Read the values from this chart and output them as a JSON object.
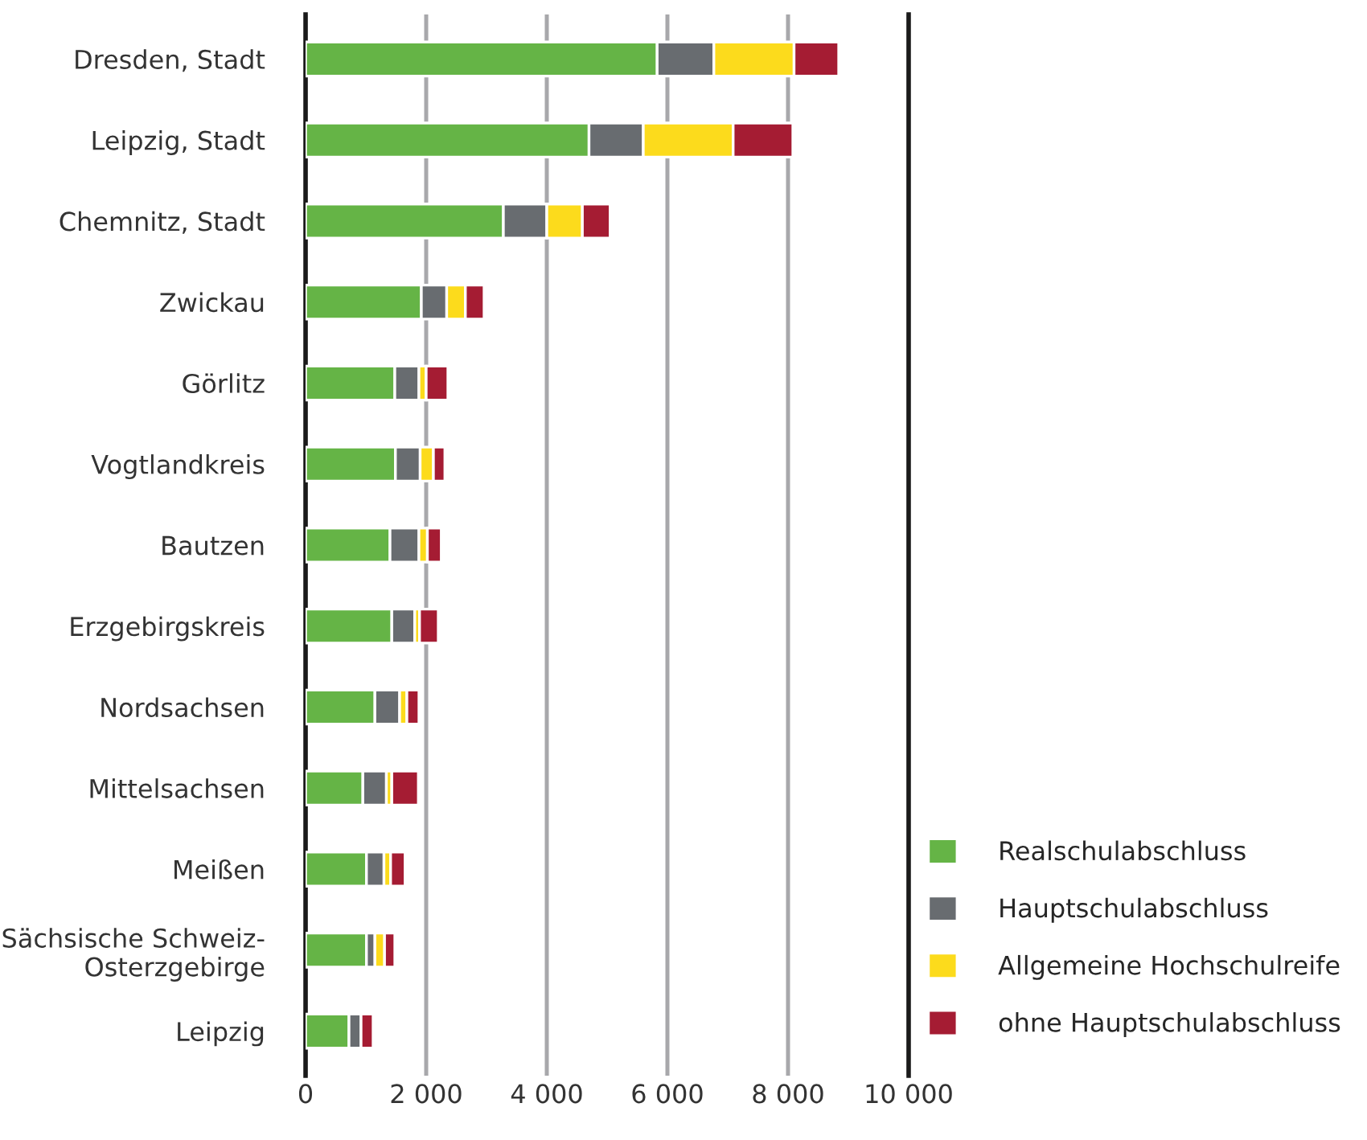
{
  "chart_data": {
    "type": "bar",
    "orientation": "horizontal",
    "stacked": true,
    "categories": [
      "Dresden, Stadt",
      "Leipzig, Stadt",
      "Chemnitz, Stadt",
      "Zwickau",
      "Görlitz",
      "Vogtlandkreis",
      "Bautzen",
      "Erzgebirgskreis",
      "Nordsachsen",
      "Mittelsachsen",
      "Meißen",
      "Sächsische Schweiz-\nOsterzgebirge",
      "Leipzig"
    ],
    "series": [
      {
        "name": "Realschulabschluss",
        "color": "#65b446",
        "values": [
          5830,
          4700,
          3280,
          1920,
          1480,
          1490,
          1400,
          1430,
          1150,
          950,
          1010,
          1010,
          720
        ]
      },
      {
        "name": "Hauptschulabschluss",
        "color": "#686c70",
        "values": [
          940,
          900,
          720,
          420,
          400,
          410,
          480,
          380,
          410,
          390,
          290,
          140,
          200
        ]
      },
      {
        "name": "Allgemeine Hochschulreife",
        "color": "#fcdb1c",
        "values": [
          1330,
          1490,
          590,
          310,
          120,
          220,
          140,
          80,
          120,
          90,
          110,
          160,
          null
        ]
      },
      {
        "name": "ohne Hauptschulabschluss",
        "color": "#a51c33",
        "values": [
          740,
          990,
          460,
          310,
          360,
          190,
          230,
          310,
          200,
          440,
          240,
          170,
          200
        ]
      }
    ],
    "xlim": [
      0,
      10000
    ],
    "xticks": [
      {
        "value": 0,
        "label": "0"
      },
      {
        "value": 2000,
        "label": "2 000"
      },
      {
        "value": 4000,
        "label": "4 000"
      },
      {
        "value": 6000,
        "label": "6 000"
      },
      {
        "value": 8000,
        "label": "8 000"
      },
      {
        "value": 10000,
        "label": "10 000"
      }
    ],
    "grid": "x",
    "legend": "bottom right"
  }
}
